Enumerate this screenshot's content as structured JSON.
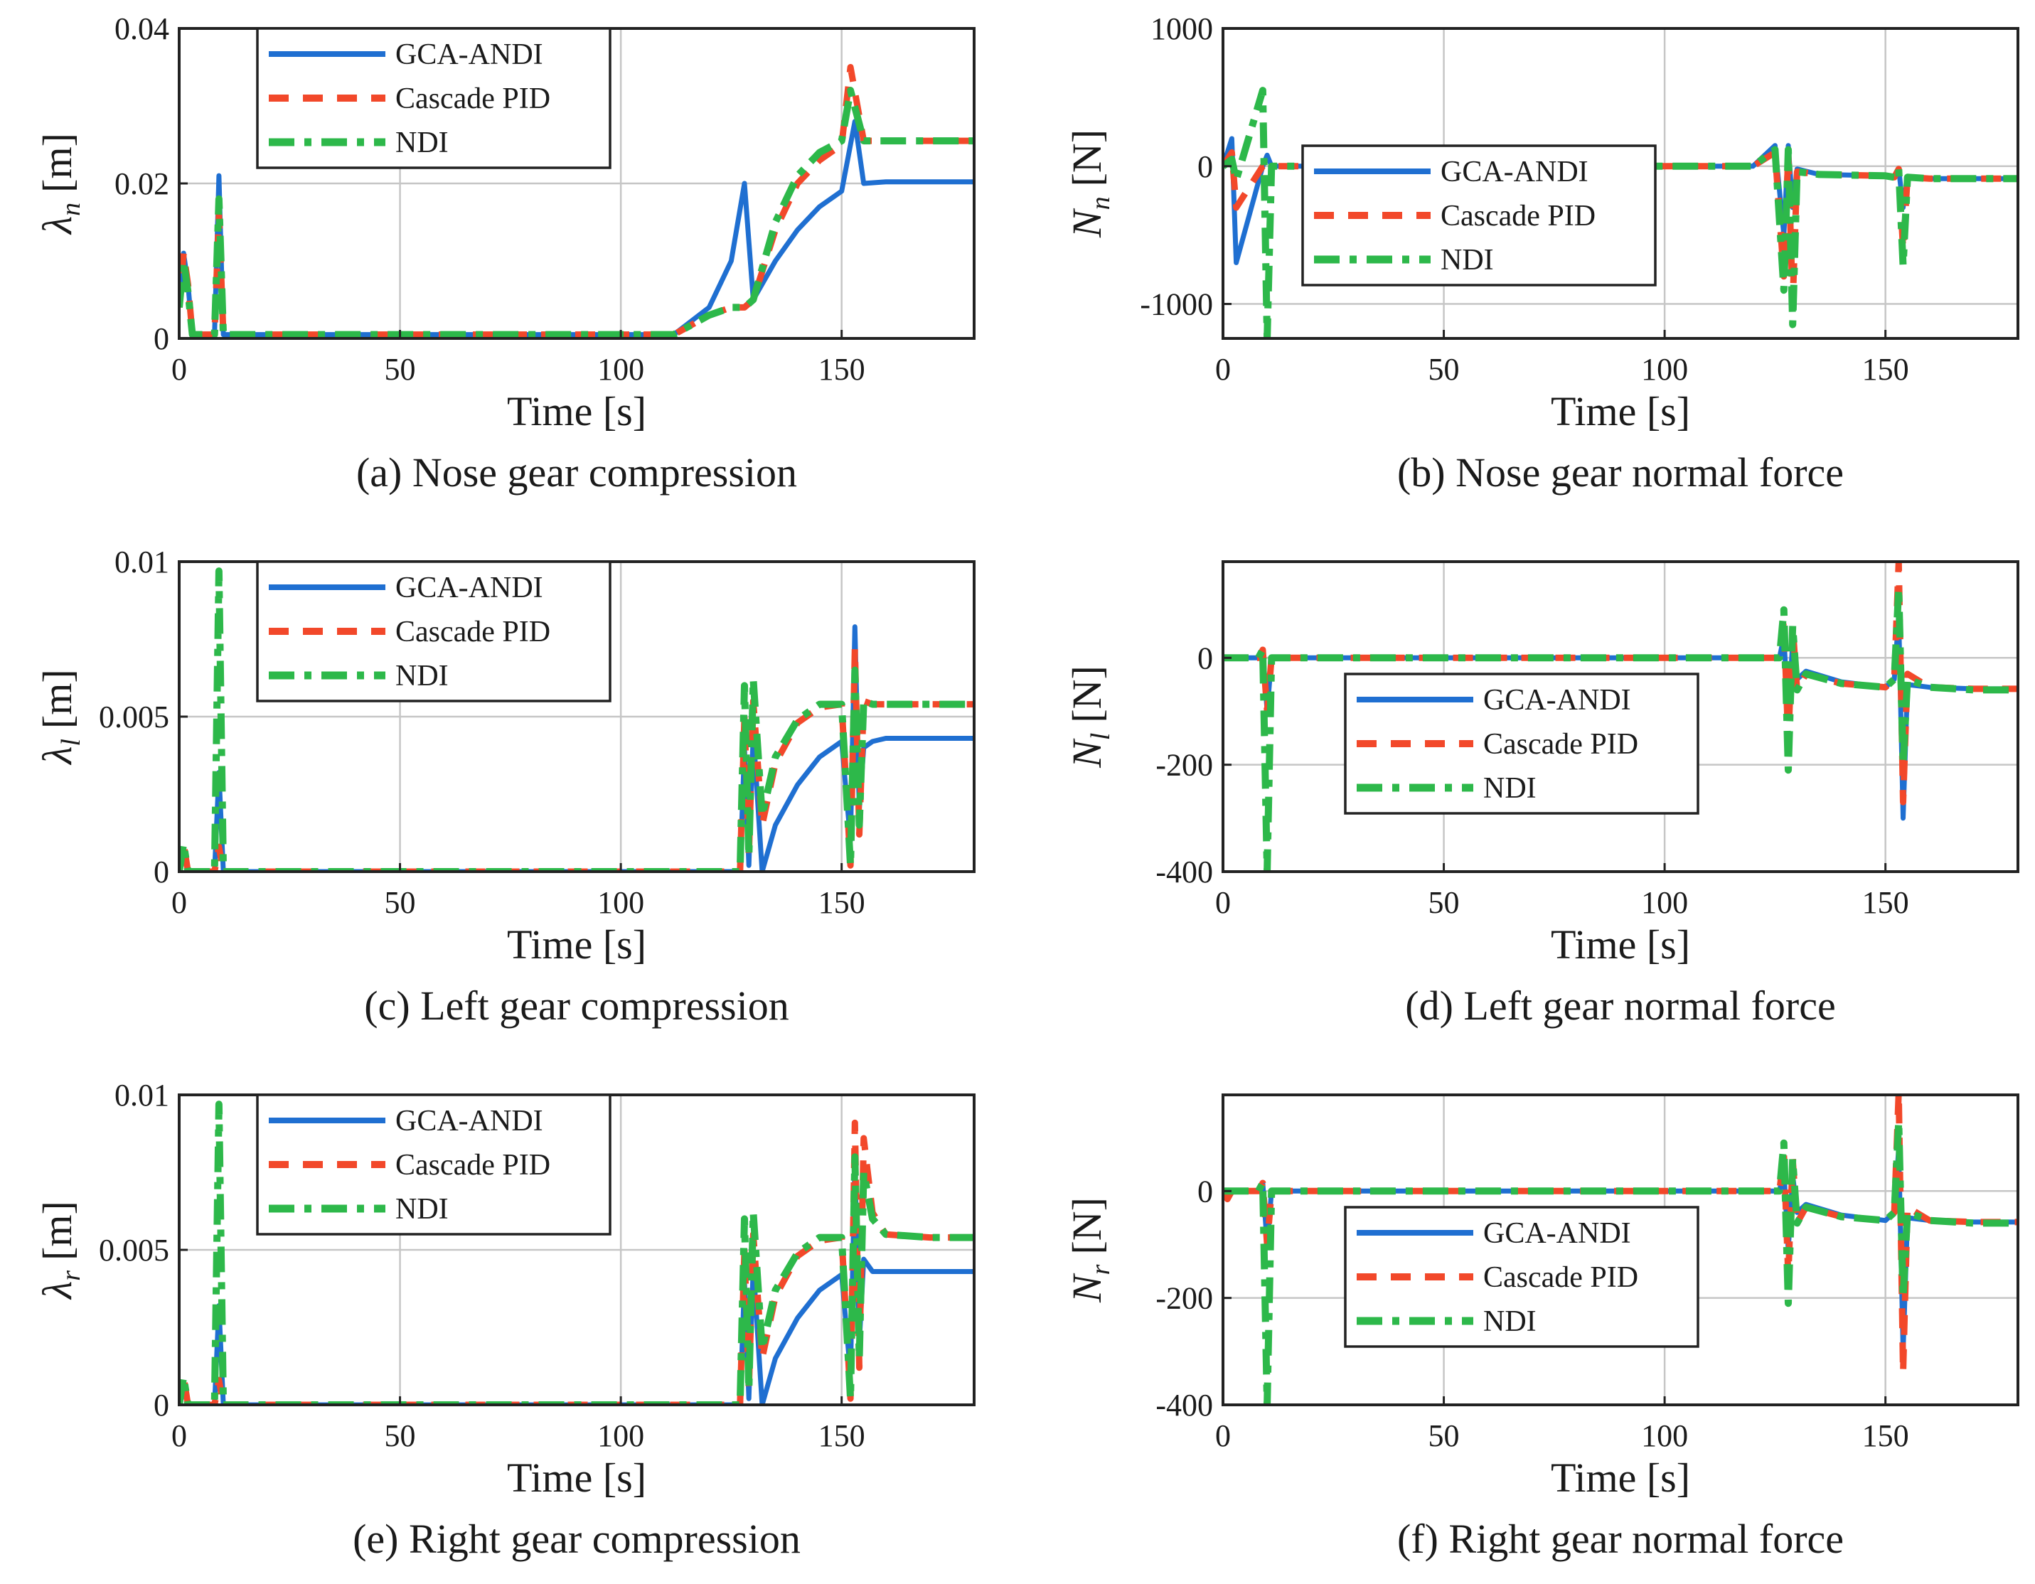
{
  "figure": {
    "colors": {
      "GCA-ANDI": "#1f6fd1",
      "Cascade PID": "#f2482a",
      "NDI": "#2db84a"
    },
    "legend_entries": [
      "GCA-ANDI",
      "Cascade PID",
      "NDI"
    ]
  },
  "chart_data": [
    {
      "type": "line",
      "caption": "(a) Nose gear compression",
      "xlabel": "Time [s]",
      "ylabel": "λn [m]",
      "ylabel_main": "λ",
      "ylabel_sub": "n",
      "ylabel_unit": "[m]",
      "xlim": [
        0,
        180
      ],
      "ylim": [
        0,
        0.04
      ],
      "xticks": [
        0,
        50,
        100,
        150
      ],
      "xtick_labels": [
        "0",
        "50",
        "100",
        "150"
      ],
      "yticks": [
        0,
        0.02,
        0.04
      ],
      "ytick_labels": [
        "0",
        "0.02",
        "0.04"
      ],
      "grid": true,
      "legend_position": "top-center",
      "series": [
        {
          "name": "GCA-ANDI",
          "x": [
            0,
            1,
            2,
            3,
            8,
            9,
            10,
            112,
            120,
            125,
            128,
            130,
            135,
            140,
            145,
            150,
            153,
            155,
            160,
            165,
            170,
            175,
            180
          ],
          "y": [
            0.004,
            0.011,
            0.007,
            0.0005,
            0.0005,
            0.021,
            0.0005,
            0.0005,
            0.004,
            0.01,
            0.02,
            0.005,
            0.01,
            0.014,
            0.017,
            0.019,
            0.028,
            0.02,
            0.0202,
            0.0202,
            0.0202,
            0.0202,
            0.0202
          ]
        },
        {
          "name": "Cascade PID",
          "x": [
            0,
            1,
            2,
            3,
            8,
            9,
            10,
            112,
            120,
            125,
            128,
            130,
            135,
            140,
            145,
            150,
            152,
            155,
            160,
            165,
            170,
            175,
            180
          ],
          "y": [
            0.004,
            0.011,
            0.007,
            0.0005,
            0.0005,
            0.016,
            0.0005,
            0.0005,
            0.003,
            0.004,
            0.004,
            0.005,
            0.014,
            0.02,
            0.023,
            0.025,
            0.035,
            0.0255,
            0.0255,
            0.0255,
            0.0255,
            0.0255,
            0.0255
          ]
        },
        {
          "name": "NDI",
          "x": [
            0,
            1,
            2,
            3,
            8,
            9,
            10,
            112,
            120,
            125,
            128,
            130,
            135,
            140,
            145,
            150,
            152,
            155,
            160,
            165,
            170,
            175,
            180
          ],
          "y": [
            0.004,
            0.01,
            0.006,
            0.0005,
            0.0005,
            0.018,
            0.0005,
            0.0005,
            0.003,
            0.004,
            0.004,
            0.005,
            0.015,
            0.021,
            0.024,
            0.0255,
            0.032,
            0.0255,
            0.0255,
            0.0255,
            0.0255,
            0.0255,
            0.0255
          ]
        }
      ]
    },
    {
      "type": "line",
      "caption": "(b) Nose gear normal force",
      "xlabel": "Time [s]",
      "ylabel": "Nn [N]",
      "ylabel_main": "N",
      "ylabel_sub": "n",
      "ylabel_unit": "[N]",
      "xlim": [
        0,
        180
      ],
      "ylim": [
        -1250,
        1000
      ],
      "xticks": [
        0,
        50,
        100,
        150
      ],
      "xtick_labels": [
        "0",
        "50",
        "100",
        "150"
      ],
      "yticks": [
        -1000,
        0,
        1000
      ],
      "ytick_labels": [
        "-1000",
        "0",
        "1000"
      ],
      "grid": true,
      "legend_position": "middle-left",
      "series": [
        {
          "name": "GCA-ANDI",
          "x": [
            0,
            2,
            3,
            9,
            10,
            11,
            120,
            125,
            127,
            128,
            129,
            130,
            135,
            150,
            152,
            153,
            154,
            155,
            160,
            170,
            180
          ],
          "y": [
            0,
            200,
            -700,
            0,
            80,
            0,
            0,
            150,
            -500,
            150,
            -300,
            -20,
            -60,
            -70,
            -80,
            -20,
            -300,
            -80,
            -90,
            -90,
            -90
          ]
        },
        {
          "name": "Cascade PID",
          "x": [
            0,
            2,
            3,
            9,
            10,
            11,
            120,
            125,
            127,
            128,
            129,
            130,
            135,
            150,
            152,
            153,
            154,
            155,
            160,
            170,
            180
          ],
          "y": [
            0,
            100,
            -300,
            0,
            0,
            0,
            0,
            100,
            -800,
            100,
            -1000,
            -40,
            -60,
            -70,
            -80,
            -20,
            -600,
            -80,
            -90,
            -90,
            -90
          ]
        },
        {
          "name": "NDI",
          "x": [
            0,
            2,
            3,
            9,
            10,
            11,
            120,
            125,
            127,
            128,
            129,
            130,
            135,
            150,
            152,
            153,
            154,
            155,
            160,
            170,
            180
          ],
          "y": [
            0,
            50,
            -100,
            550,
            -1250,
            0,
            0,
            120,
            -900,
            120,
            -1150,
            -40,
            -60,
            -70,
            -80,
            -20,
            -720,
            -80,
            -90,
            -90,
            -90
          ]
        }
      ]
    },
    {
      "type": "line",
      "caption": "(c) Left gear compression",
      "xlabel": "Time [s]",
      "ylabel": "λl [m]",
      "ylabel_main": "λ",
      "ylabel_sub": "l",
      "ylabel_unit": "[m]",
      "xlim": [
        0,
        180
      ],
      "ylim": [
        0,
        0.01
      ],
      "xticks": [
        0,
        50,
        100,
        150
      ],
      "xtick_labels": [
        "0",
        "50",
        "100",
        "150"
      ],
      "yticks": [
        0,
        0.005,
        0.01
      ],
      "ytick_labels": [
        "0",
        "0.005",
        "0.01"
      ],
      "grid": true,
      "legend_position": "top-center",
      "series": [
        {
          "name": "GCA-ANDI",
          "x": [
            0,
            1,
            2,
            8,
            9,
            10,
            127,
            128,
            129,
            130,
            132,
            135,
            140,
            145,
            150,
            152,
            153,
            154,
            155,
            157,
            160,
            170,
            180
          ],
          "y": [
            0,
            0.0005,
            0,
            0,
            0.0032,
            0,
            0,
            0.004,
            0.0002,
            0.0045,
            0,
            0.0015,
            0.0028,
            0.0037,
            0.0042,
            0.001,
            0.0079,
            0.002,
            0.004,
            0.0042,
            0.0043,
            0.0043,
            0.0043
          ]
        },
        {
          "name": "Cascade PID",
          "x": [
            0,
            1,
            2,
            8,
            9,
            10,
            127,
            128,
            129,
            130,
            132,
            135,
            140,
            145,
            150,
            152,
            153,
            154,
            155,
            157,
            160,
            170,
            180
          ],
          "y": [
            0,
            0.0009,
            0,
            0,
            0.0008,
            0,
            0,
            0.005,
            0.0005,
            0.0055,
            0.0015,
            0.0035,
            0.0048,
            0.0053,
            0.0054,
            0.0002,
            0.0072,
            0.0012,
            0.0055,
            0.0054,
            0.0054,
            0.0054,
            0.0054
          ]
        },
        {
          "name": "NDI",
          "x": [
            0,
            1,
            2,
            8,
            9,
            10,
            127,
            128,
            129,
            130,
            132,
            135,
            140,
            145,
            150,
            152,
            153,
            154,
            155,
            157,
            160,
            170,
            180
          ],
          "y": [
            0,
            0.0009,
            0,
            0,
            0.0097,
            0,
            0,
            0.006,
            0.0005,
            0.0062,
            0.0018,
            0.0037,
            0.0049,
            0.0054,
            0.0054,
            0.0002,
            0.0065,
            0.0015,
            0.0055,
            0.0054,
            0.0054,
            0.0054,
            0.0054
          ]
        }
      ]
    },
    {
      "type": "line",
      "caption": "(d) Left gear normal force",
      "xlabel": "Time [s]",
      "ylabel": "Nl [N]",
      "ylabel_main": "N",
      "ylabel_sub": "l",
      "ylabel_unit": "[N]",
      "xlim": [
        0,
        180
      ],
      "ylim": [
        -400,
        180
      ],
      "xticks": [
        0,
        50,
        100,
        150
      ],
      "xtick_labels": [
        "0",
        "50",
        "100",
        "150"
      ],
      "yticks": [
        -400,
        -200,
        0
      ],
      "ytick_labels": [
        "-400",
        "-200",
        "0"
      ],
      "grid": true,
      "legend_position": "middle-center",
      "series": [
        {
          "name": "GCA-ANDI",
          "x": [
            0,
            8,
            9,
            10,
            11,
            126,
            127,
            128,
            129,
            130,
            132,
            140,
            150,
            152,
            153,
            154,
            155,
            160,
            170,
            180
          ],
          "y": [
            0,
            0,
            15,
            -100,
            0,
            0,
            40,
            -110,
            30,
            -40,
            -25,
            -45,
            -55,
            -40,
            80,
            -300,
            -50,
            -55,
            -58,
            -58
          ]
        },
        {
          "name": "Cascade PID",
          "x": [
            0,
            8,
            9,
            10,
            11,
            126,
            127,
            128,
            129,
            130,
            132,
            140,
            150,
            152,
            153,
            154,
            155,
            160,
            170,
            180
          ],
          "y": [
            0,
            0,
            15,
            -100,
            0,
            0,
            70,
            -160,
            60,
            -60,
            -30,
            -48,
            -55,
            -40,
            180,
            -270,
            -30,
            -55,
            -58,
            -58
          ]
        },
        {
          "name": "NDI",
          "x": [
            0,
            8,
            9,
            10,
            11,
            126,
            127,
            128,
            129,
            130,
            132,
            140,
            150,
            152,
            153,
            154,
            155,
            160,
            170,
            180
          ],
          "y": [
            0,
            0,
            15,
            -400,
            0,
            0,
            90,
            -210,
            60,
            -60,
            -30,
            -48,
            -55,
            -40,
            130,
            -200,
            -40,
            -55,
            -60,
            -60
          ]
        }
      ]
    },
    {
      "type": "line",
      "caption": "(e) Right gear compression",
      "xlabel": "Time [s]",
      "ylabel": "λr [m]",
      "ylabel_main": "λ",
      "ylabel_sub": "r",
      "ylabel_unit": "[m]",
      "xlim": [
        0,
        180
      ],
      "ylim": [
        0,
        0.01
      ],
      "xticks": [
        0,
        50,
        100,
        150
      ],
      "xtick_labels": [
        "0",
        "50",
        "100",
        "150"
      ],
      "yticks": [
        0,
        0.005,
        0.01
      ],
      "ytick_labels": [
        "0",
        "0.005",
        "0.01"
      ],
      "grid": true,
      "legend_position": "top-center",
      "series": [
        {
          "name": "GCA-ANDI",
          "x": [
            0,
            1,
            2,
            8,
            9,
            10,
            127,
            128,
            129,
            130,
            132,
            135,
            140,
            145,
            150,
            152,
            153,
            154,
            155,
            157,
            160,
            170,
            180
          ],
          "y": [
            0,
            0.0005,
            0,
            0,
            0.0032,
            0,
            0,
            0.004,
            0.0002,
            0.0045,
            0,
            0.0015,
            0.0028,
            0.0037,
            0.0042,
            0.001,
            0.0078,
            0.002,
            0.0047,
            0.0043,
            0.0043,
            0.0043,
            0.0043
          ]
        },
        {
          "name": "Cascade PID",
          "x": [
            0,
            1,
            2,
            8,
            9,
            10,
            127,
            128,
            129,
            130,
            132,
            135,
            140,
            145,
            150,
            152,
            153,
            154,
            155,
            157,
            160,
            170,
            180
          ],
          "y": [
            0,
            0.0009,
            0,
            0,
            0.0008,
            0,
            0,
            0.005,
            0.0005,
            0.0055,
            0.0015,
            0.0035,
            0.0048,
            0.0053,
            0.0054,
            0.0002,
            0.0091,
            0.0012,
            0.0086,
            0.0062,
            0.0055,
            0.0054,
            0.0054
          ]
        },
        {
          "name": "NDI",
          "x": [
            0,
            1,
            2,
            8,
            9,
            10,
            127,
            128,
            129,
            130,
            132,
            135,
            140,
            145,
            150,
            152,
            153,
            154,
            155,
            157,
            160,
            170,
            180
          ],
          "y": [
            0,
            0.0009,
            0,
            0,
            0.0097,
            0,
            0,
            0.006,
            0.0005,
            0.0062,
            0.0018,
            0.0037,
            0.0049,
            0.0054,
            0.0054,
            0.0002,
            0.008,
            0.0015,
            0.0075,
            0.006,
            0.0055,
            0.0054,
            0.0054
          ]
        }
      ]
    },
    {
      "type": "line",
      "caption": "(f) Right gear normal force",
      "xlabel": "Time [s]",
      "ylabel": "Nr [N]",
      "ylabel_main": "N",
      "ylabel_sub": "r",
      "ylabel_unit": "[N]",
      "xlim": [
        0,
        180
      ],
      "ylim": [
        -400,
        180
      ],
      "xticks": [
        0,
        50,
        100,
        150
      ],
      "xtick_labels": [
        "0",
        "50",
        "100",
        "150"
      ],
      "yticks": [
        -400,
        -200,
        0
      ],
      "ytick_labels": [
        "-400",
        "-200",
        "0"
      ],
      "grid": true,
      "legend_position": "middle-center",
      "series": [
        {
          "name": "GCA-ANDI",
          "x": [
            0,
            1,
            2,
            8,
            9,
            10,
            11,
            126,
            127,
            128,
            129,
            130,
            132,
            140,
            150,
            152,
            153,
            154,
            155,
            160,
            170,
            180
          ],
          "y": [
            0,
            0,
            0,
            0,
            15,
            -100,
            0,
            0,
            40,
            -110,
            30,
            -40,
            -25,
            -45,
            -55,
            -40,
            80,
            -300,
            -50,
            -55,
            -58,
            -58
          ]
        },
        {
          "name": "Cascade PID",
          "x": [
            0,
            1,
            2,
            8,
            9,
            10,
            11,
            126,
            127,
            128,
            129,
            130,
            132,
            140,
            150,
            152,
            153,
            154,
            155,
            160,
            170,
            180
          ],
          "y": [
            0,
            -15,
            0,
            0,
            15,
            -100,
            0,
            0,
            70,
            -160,
            60,
            -60,
            -30,
            -48,
            -55,
            -40,
            185,
            -340,
            -30,
            -55,
            -58,
            -58
          ]
        },
        {
          "name": "NDI",
          "x": [
            0,
            1,
            2,
            8,
            9,
            10,
            11,
            126,
            127,
            128,
            129,
            130,
            132,
            140,
            150,
            152,
            153,
            154,
            155,
            160,
            170,
            180
          ],
          "y": [
            0,
            0,
            0,
            0,
            15,
            -400,
            0,
            0,
            90,
            -210,
            60,
            -60,
            -30,
            -48,
            -55,
            -40,
            130,
            -200,
            -40,
            -55,
            -60,
            -60
          ]
        }
      ]
    }
  ]
}
